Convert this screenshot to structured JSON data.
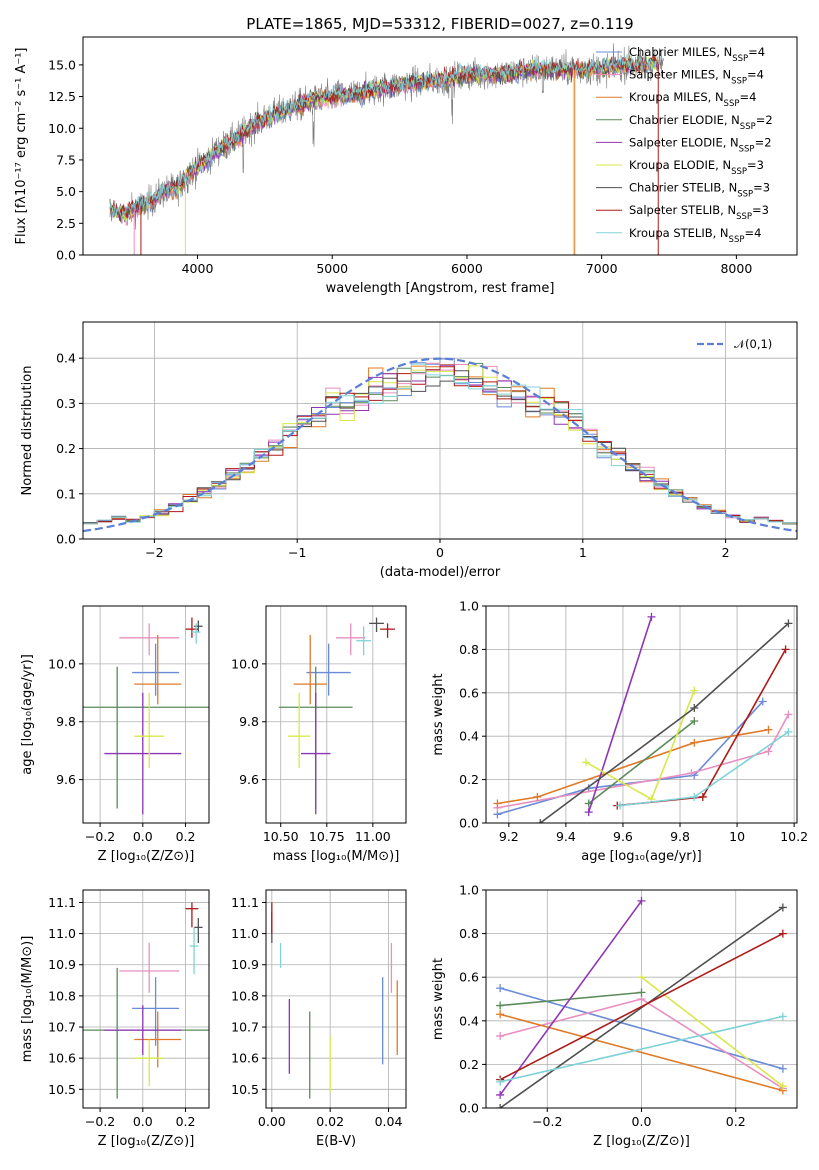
{
  "figure_title": "PLATE=1865, MJD=53312, FIBERID=0027, z=0.119",
  "series_styles": [
    {
      "name": "Chabrier MILES",
      "nssp": "4",
      "color": "#6a8bd8"
    },
    {
      "name": "Salpeter MILES",
      "nssp": "4",
      "color": "#e88fc1"
    },
    {
      "name": "Kroupa MILES",
      "nssp": "4",
      "color": "#df7a28"
    },
    {
      "name": "Chabrier ELODIE",
      "nssp": "2",
      "color": "#5a8a5a"
    },
    {
      "name": "Salpeter ELODIE",
      "nssp": "2",
      "color": "#8e35b5"
    },
    {
      "name": "Kroupa ELODIE",
      "nssp": "3",
      "color": "#d8e84a"
    },
    {
      "name": "Chabrier STELIB",
      "nssp": "3",
      "color": "#505050"
    },
    {
      "name": "Salpeter STELIB",
      "nssp": "3",
      "color": "#b01818"
    },
    {
      "name": "Kroupa STELIB",
      "nssp": "4",
      "color": "#7fd2d8"
    }
  ],
  "chart_data": [
    {
      "id": "spectrum",
      "type": "line",
      "xlabel": "wavelength [Angstrom, rest frame]",
      "ylabel": "Flux [fλ10⁻¹⁷ erg cm⁻² s⁻¹ A⁻¹]",
      "xlim": [
        3150,
        8450
      ],
      "ylim": [
        0,
        17.2
      ],
      "xticks": [
        4000,
        5000,
        6000,
        7000,
        8000
      ],
      "yticks": [
        0.0,
        2.5,
        5.0,
        7.5,
        10.0,
        12.5,
        15.0
      ],
      "legend_loc": "right",
      "continuum": [
        [
          3350,
          3.6
        ],
        [
          3450,
          3.2
        ],
        [
          3550,
          3.7
        ],
        [
          3650,
          4.2
        ],
        [
          3750,
          5.0
        ],
        [
          3850,
          5.3
        ],
        [
          3950,
          6.5
        ],
        [
          4050,
          7.3
        ],
        [
          4150,
          8.3
        ],
        [
          4250,
          8.9
        ],
        [
          4350,
          9.7
        ],
        [
          4450,
          10.5
        ],
        [
          4550,
          11.0
        ],
        [
          4650,
          11.4
        ],
        [
          4750,
          11.8
        ],
        [
          4850,
          12.2
        ],
        [
          4950,
          12.4
        ],
        [
          5050,
          12.6
        ],
        [
          5150,
          12.6
        ],
        [
          5250,
          12.9
        ],
        [
          5350,
          13.1
        ],
        [
          5450,
          13.3
        ],
        [
          5550,
          13.5
        ],
        [
          5650,
          13.6
        ],
        [
          5750,
          13.8
        ],
        [
          5850,
          13.8
        ],
        [
          5950,
          14.1
        ],
        [
          6050,
          14.2
        ],
        [
          6150,
          14.3
        ],
        [
          6250,
          14.2
        ],
        [
          6350,
          14.4
        ],
        [
          6450,
          14.5
        ],
        [
          6550,
          14.7
        ],
        [
          6650,
          14.6
        ],
        [
          6750,
          14.6
        ],
        [
          6850,
          14.6
        ],
        [
          6950,
          14.7
        ],
        [
          7050,
          14.8
        ],
        [
          7150,
          15.0
        ],
        [
          7250,
          15.0
        ],
        [
          7350,
          15.1
        ]
      ],
      "data_extent": [
        3440,
        7460
      ],
      "model_extent": [
        3350,
        7420
      ]
    },
    {
      "id": "residuals",
      "type": "histogram",
      "xlabel": "(data-model)/error",
      "ylabel": "Normed distribution",
      "xlim": [
        -2.5,
        2.5
      ],
      "ylim": [
        0,
        0.48
      ],
      "xticks": [
        -2,
        -1,
        0,
        1,
        2
      ],
      "xtick_labels": [
        "−2",
        "−1",
        "0",
        "1",
        "2"
      ],
      "yticks": [
        0.0,
        0.1,
        0.2,
        0.3,
        0.4
      ],
      "bin_width": 0.1,
      "reference_curve": "𝒩(0,1)",
      "legend_loc": "upper right"
    },
    {
      "id": "age_vs_Z",
      "type": "scatter",
      "xlabel": "Z [log₁₀(Z/Z⊙)]",
      "ylabel": "age  [log₁₀(age/yr)]",
      "xlim": [
        -0.28,
        0.31
      ],
      "ylim": [
        9.45,
        10.2
      ],
      "xticks": [
        -0.2,
        0.0,
        0.2
      ],
      "xtick_labels": [
        "−0.2",
        "0.0",
        "0.2"
      ],
      "yticks": [
        9.6,
        9.8,
        10.0
      ],
      "points": [
        {
          "x": 0.06,
          "y": 9.97,
          "xe": 0.11,
          "ye": [
            0.08,
            0.1
          ]
        },
        {
          "x": 0.03,
          "y": 10.09,
          "xe": 0.14,
          "ye": [
            0.06,
            0.05
          ]
        },
        {
          "x": 0.07,
          "y": 9.93,
          "xe": 0.11,
          "ye": [
            0.07,
            0.17
          ]
        },
        {
          "x": -0.12,
          "y": 9.85,
          "xe": 0.43,
          "ye": [
            0.35,
            0.14
          ]
        },
        {
          "x": 0.0,
          "y": 9.69,
          "xe": 0.18,
          "ye": [
            0.21,
            0.21
          ]
        },
        {
          "x": 0.03,
          "y": 9.75,
          "xe": 0.07,
          "ye": [
            0.11,
            0.15
          ]
        },
        {
          "x": 0.26,
          "y": 10.13,
          "xe": 0.02,
          "ye": [
            0.02,
            0.02
          ]
        },
        {
          "x": 0.23,
          "y": 10.12,
          "xe": 0.03,
          "ye": [
            0.03,
            0.04
          ]
        },
        {
          "x": 0.25,
          "y": 10.11,
          "xe": 0.02,
          "ye": [
            0.04,
            0.03
          ]
        }
      ]
    },
    {
      "id": "age_vs_mass",
      "type": "scatter",
      "xlabel": "mass [log₁₀(M/M⊙)]",
      "ylabel": "",
      "xlim": [
        10.42,
        11.18
      ],
      "ylim": [
        9.45,
        10.2
      ],
      "xticks": [
        10.5,
        10.75,
        11.0
      ],
      "xtick_labels": [
        "10.50",
        "10.75",
        "11.00"
      ],
      "yticks": [
        9.6,
        9.8,
        10.0
      ],
      "points": [
        {
          "x": 10.76,
          "y": 9.97,
          "xe": 0.12,
          "ye": [
            0.08,
            0.1
          ]
        },
        {
          "x": 10.88,
          "y": 10.09,
          "xe": 0.08,
          "ye": [
            0.06,
            0.05
          ]
        },
        {
          "x": 10.66,
          "y": 9.93,
          "xe": 0.09,
          "ye": [
            0.07,
            0.17
          ]
        },
        {
          "x": 10.69,
          "y": 9.85,
          "xe": 0.2,
          "ye": [
            0.35,
            0.14
          ]
        },
        {
          "x": 10.69,
          "y": 9.69,
          "xe": 0.08,
          "ye": [
            0.21,
            0.21
          ]
        },
        {
          "x": 10.6,
          "y": 9.75,
          "xe": 0.06,
          "ye": [
            0.11,
            0.15
          ]
        },
        {
          "x": 11.02,
          "y": 10.14,
          "xe": 0.04,
          "ye": [
            0.03,
            0.02
          ]
        },
        {
          "x": 11.08,
          "y": 10.12,
          "xe": 0.04,
          "ye": [
            0.03,
            0.02
          ]
        },
        {
          "x": 10.95,
          "y": 10.08,
          "xe": 0.04,
          "ye": [
            0.05,
            0.05
          ]
        }
      ]
    },
    {
      "id": "weight_vs_age",
      "type": "line",
      "xlabel": "age  [log₁₀(age/yr)]",
      "ylabel": "mass weight",
      "xlim": [
        9.12,
        10.21
      ],
      "ylim": [
        0,
        1
      ],
      "xticks": [
        9.2,
        9.4,
        9.6,
        9.8,
        10.0,
        10.2
      ],
      "yticks": [
        0.0,
        0.2,
        0.4,
        0.6,
        0.8,
        1.0
      ],
      "series": [
        {
          "x": [
            9.16,
            9.48,
            9.85,
            10.09
          ],
          "y": [
            0.04,
            0.16,
            0.22,
            0.56
          ]
        },
        {
          "x": [
            9.16,
            9.84,
            10.11,
            10.18
          ],
          "y": [
            0.07,
            0.23,
            0.33,
            0.5
          ]
        },
        {
          "x": [
            9.16,
            9.3,
            9.85,
            10.11
          ],
          "y": [
            0.09,
            0.12,
            0.37,
            0.43
          ]
        },
        {
          "x": [
            9.48,
            9.85
          ],
          "y": [
            0.09,
            0.47
          ]
        },
        {
          "x": [
            9.48,
            9.7
          ],
          "y": [
            0.05,
            0.95
          ]
        },
        {
          "x": [
            9.47,
            9.7,
            9.85
          ],
          "y": [
            0.28,
            0.11,
            0.61
          ]
        },
        {
          "x": [
            9.31,
            9.85,
            10.18
          ],
          "y": [
            0.0,
            0.53,
            0.92
          ]
        },
        {
          "x": [
            9.58,
            9.88,
            10.17
          ],
          "y": [
            0.08,
            0.12,
            0.8
          ]
        },
        {
          "x": [
            9.59,
            9.85,
            10.18
          ],
          "y": [
            0.08,
            0.12,
            0.42
          ]
        }
      ]
    },
    {
      "id": "mass_vs_Z",
      "type": "scatter",
      "xlabel": "Z [log₁₀(Z/Z⊙)]",
      "ylabel": "mass [log₁₀(M/M⊙)]",
      "xlim": [
        -0.28,
        0.31
      ],
      "ylim": [
        10.44,
        11.14
      ],
      "xticks": [
        -0.2,
        0.0,
        0.2
      ],
      "xtick_labels": [
        "−0.2",
        "0.0",
        "0.2"
      ],
      "yticks": [
        10.5,
        10.6,
        10.7,
        10.8,
        10.9,
        11.0,
        11.1
      ],
      "points": [
        {
          "x": 0.06,
          "y": 10.76,
          "xe": 0.11,
          "ye": [
            0.12,
            0.1
          ]
        },
        {
          "x": 0.03,
          "y": 10.88,
          "xe": 0.14,
          "ye": [
            0.07,
            0.09
          ]
        },
        {
          "x": 0.07,
          "y": 10.66,
          "xe": 0.11,
          "ye": [
            0.09,
            0.09
          ]
        },
        {
          "x": -0.12,
          "y": 10.69,
          "xe": 0.43,
          "ye": [
            0.22,
            0.2
          ]
        },
        {
          "x": 0.0,
          "y": 10.69,
          "xe": 0.18,
          "ye": [
            0.08,
            0.08
          ]
        },
        {
          "x": 0.03,
          "y": 10.6,
          "xe": 0.07,
          "ye": [
            0.09,
            0.06
          ]
        },
        {
          "x": 0.26,
          "y": 11.02,
          "xe": 0.02,
          "ye": [
            0.05,
            0.03
          ]
        },
        {
          "x": 0.23,
          "y": 11.08,
          "xe": 0.03,
          "ye": [
            0.06,
            0.02
          ]
        },
        {
          "x": 0.24,
          "y": 10.96,
          "xe": 0.02,
          "ye": [
            0.09,
            0.06
          ]
        }
      ]
    },
    {
      "id": "mass_vs_ebv",
      "type": "errorbar",
      "xlabel": "E(B-V)",
      "ylabel": "",
      "xlim": [
        -0.002,
        0.046
      ],
      "ylim": [
        10.44,
        11.14
      ],
      "xticks": [
        0.0,
        0.02,
        0.04
      ],
      "xtick_labels": [
        "0.00",
        "0.02",
        "0.04"
      ],
      "yticks": [
        10.5,
        10.6,
        10.7,
        10.8,
        10.9,
        11.0,
        11.1
      ],
      "points": [
        {
          "x": 0.038,
          "y": 10.72,
          "ye": [
            0.14,
            0.14
          ]
        },
        {
          "x": 0.041,
          "y": 10.89,
          "ye": [
            0.08,
            0.08
          ]
        },
        {
          "x": 0.043,
          "y": 10.73,
          "ye": [
            0.12,
            0.12
          ]
        },
        {
          "x": 0.013,
          "y": 10.61,
          "ye": [
            0.14,
            0.14
          ]
        },
        {
          "x": 0.006,
          "y": 10.67,
          "ye": [
            0.12,
            0.12
          ]
        },
        {
          "x": 0.02,
          "y": 10.58,
          "ye": [
            0.09,
            0.09
          ]
        },
        {
          "x": 0.0,
          "y": 11.02,
          "ye": [
            0.05,
            0.05
          ]
        },
        {
          "x": 0.0,
          "y": 11.05,
          "ye": [
            0.05,
            0.05
          ]
        },
        {
          "x": 0.003,
          "y": 10.93,
          "ye": [
            0.04,
            0.04
          ]
        }
      ]
    },
    {
      "id": "weight_vs_Z",
      "type": "line",
      "xlabel": "Z [log₁₀(Z/Z⊙)]",
      "ylabel": "mass weight",
      "xlim": [
        -0.33,
        0.33
      ],
      "ylim": [
        0,
        1
      ],
      "xticks": [
        -0.2,
        0.0,
        0.2
      ],
      "xtick_labels": [
        "−0.2",
        "0.0",
        "0.2"
      ],
      "yticks": [
        0.0,
        0.2,
        0.4,
        0.6,
        0.8,
        1.0
      ],
      "series": [
        {
          "x": [
            -0.3,
            0.3
          ],
          "y": [
            0.55,
            0.18
          ]
        },
        {
          "x": [
            -0.3,
            0.0,
            0.3
          ],
          "y": [
            0.33,
            0.5,
            0.09
          ]
        },
        {
          "x": [
            -0.3,
            0.3
          ],
          "y": [
            0.43,
            0.08
          ]
        },
        {
          "x": [
            -0.3,
            0.0
          ],
          "y": [
            0.47,
            0.53
          ]
        },
        {
          "x": [
            -0.3,
            0.0
          ],
          "y": [
            0.06,
            0.95
          ]
        },
        {
          "x": [
            0.0,
            0.3
          ],
          "y": [
            0.6,
            0.1
          ]
        },
        {
          "x": [
            -0.3,
            0.3
          ],
          "y": [
            0.0,
            0.92
          ]
        },
        {
          "x": [
            -0.3,
            0.3
          ],
          "y": [
            0.13,
            0.8
          ]
        },
        {
          "x": [
            -0.3,
            0.3
          ],
          "y": [
            0.12,
            0.42
          ]
        }
      ]
    }
  ]
}
